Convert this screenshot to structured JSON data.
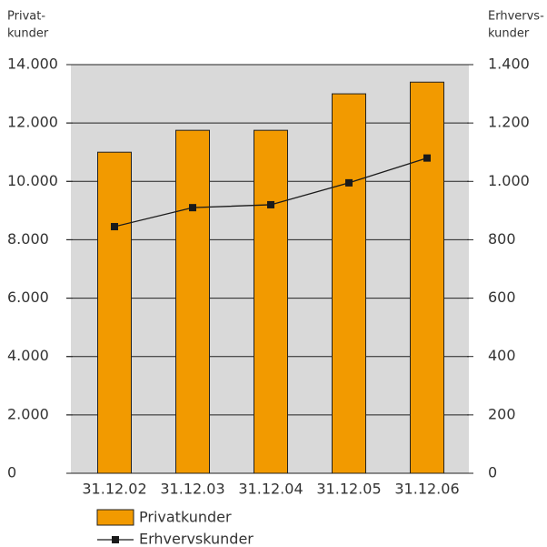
{
  "chart_data": {
    "type": "bar",
    "ylabel": [
      "Privat-",
      "kunder"
    ],
    "y2label": [
      "Erhvervs-",
      "kunder"
    ],
    "categories": [
      "31.12.02",
      "31.12.03",
      "31.12.04",
      "31.12.05",
      "31.12.06"
    ],
    "series": [
      {
        "name": "Privatkunder",
        "type": "bar",
        "color": "#f29a00",
        "values": [
          11000,
          11750,
          11750,
          13000,
          13400
        ]
      },
      {
        "name": "Erhvervskunder",
        "type": "line",
        "axis": "y2",
        "color": "#1a1a1a",
        "values": [
          845,
          910,
          920,
          995,
          1080
        ]
      }
    ],
    "ylim": [
      0,
      14000
    ],
    "yticks": [
      0,
      {
        "value": 2000,
        "label": "2.000"
      },
      {
        "value": 4000,
        "label": "4.000"
      },
      {
        "value": 6000,
        "label": "6.000"
      },
      {
        "value": 8000,
        "label": "8.000"
      },
      {
        "value": 10000,
        "label": "10.000"
      },
      {
        "value": 12000,
        "label": "12.000"
      },
      {
        "value": 14000,
        "label": "14.000"
      }
    ],
    "y2lim": [
      0,
      1400
    ],
    "y2ticks": [
      0,
      200,
      400,
      600,
      800,
      {
        "value": 1000,
        "label": "1.000"
      },
      {
        "value": 1200,
        "label": "1.200"
      },
      {
        "value": 1400,
        "label": "1.400"
      }
    ],
    "grid": true,
    "background": "#d9d9d9"
  }
}
